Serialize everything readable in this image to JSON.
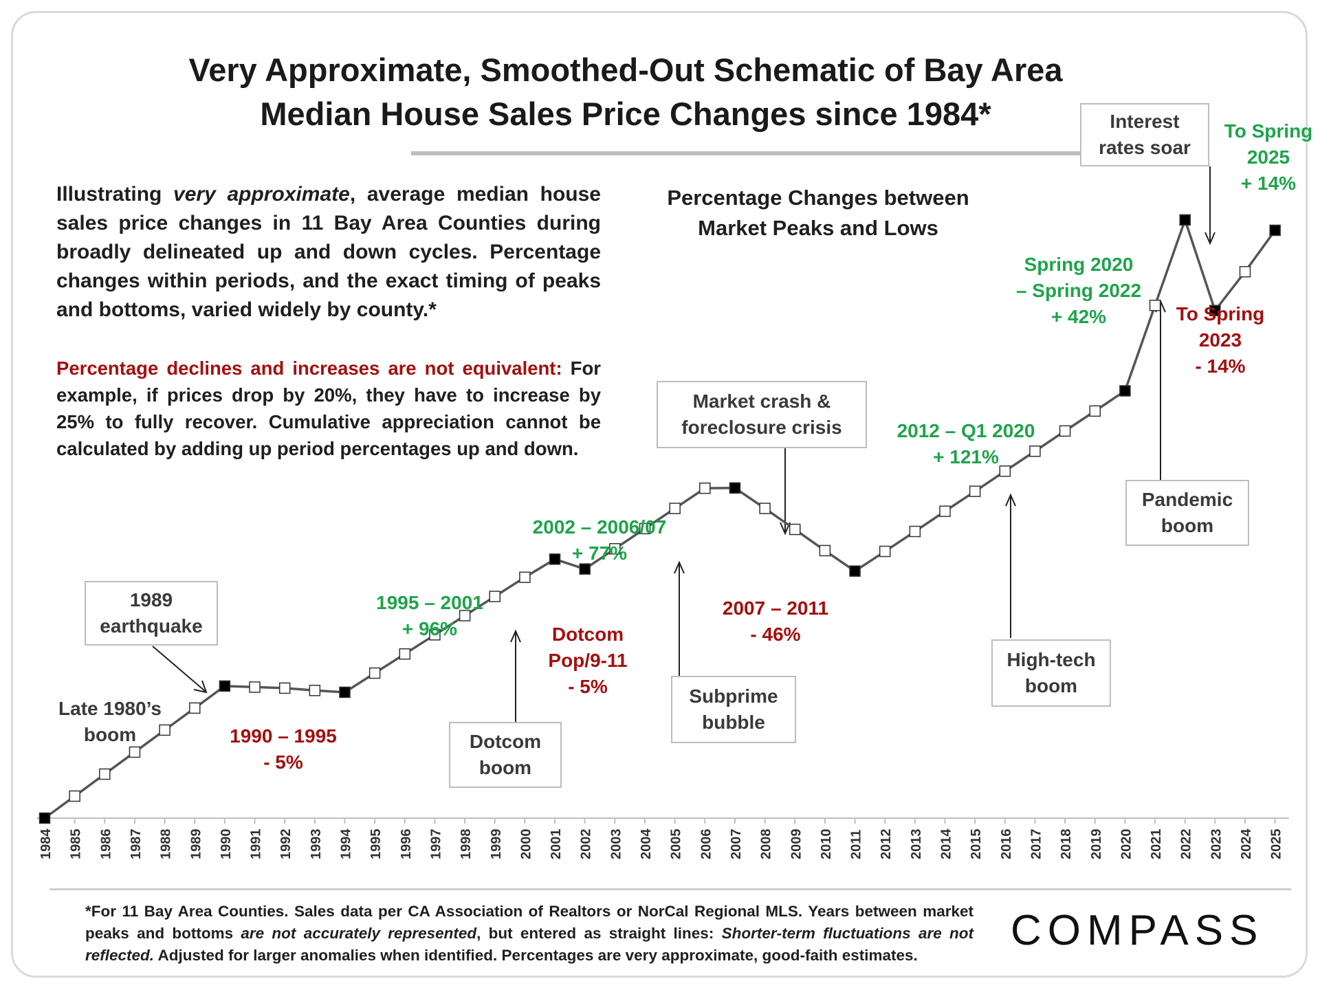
{
  "header": {
    "title_line1": "Very Approximate, Smoothed-Out Schematic of Bay Area",
    "title_line2": "Median House Sales Price Changes since 1984*"
  },
  "intro": {
    "p1_a": "Illustrating ",
    "p1_b": "very approximate",
    "p1_c": ", average median house sales price changes in 11 Bay Area Counties during broadly delineated up and down cycles. Percentage changes within periods, and the exact timing of peaks and bottoms, varied widely by county.*",
    "p2_red": "Percentage declines and increases are not equivalent:",
    "p2_rest": " For example, if prices drop by 20%, they have to increase by 25% to fully recover. Cumulative appreciation cannot be calculated by adding up period percentages up and down."
  },
  "subtitle_line1": "Percentage Changes between",
  "subtitle_line2": "Market Peaks and Lows",
  "events": {
    "earthquake": [
      "1989",
      "earthquake"
    ],
    "late80s": [
      "Late 1980’s",
      "boom"
    ],
    "dotcom_boom": [
      "Dotcom",
      "boom"
    ],
    "subprime": [
      "Subprime",
      "bubble"
    ],
    "crash": [
      "Market crash &",
      "foreclosure crisis"
    ],
    "hightech": [
      "High-tech",
      "boom"
    ],
    "pandemic": [
      "Pandemic",
      "boom"
    ],
    "rates": [
      "Interest",
      "rates soar"
    ]
  },
  "changes": {
    "c1990": [
      "1990 – 1995",
      "- 5%"
    ],
    "c1995": [
      "1995 – 2001",
      "+ 96%"
    ],
    "c2001": [
      "Dotcom",
      "Pop/9-11",
      "- 5%"
    ],
    "c2002": [
      "2002 – 2006/07",
      "+ 77%"
    ],
    "c2007": [
      "2007 – 2011",
      "- 46%"
    ],
    "c2012": [
      "2012 –  Q1 2020",
      "+ 121%"
    ],
    "c2020": [
      "Spring 2020",
      "– Spring 2022",
      "+ 42%"
    ],
    "c2022": [
      "To Spring",
      "2023",
      "- 14%"
    ],
    "c2023": [
      "To Spring",
      "2025",
      "+ 14%"
    ]
  },
  "footnote": {
    "a": "*For 11 Bay Area Counties. Sales data per CA Association of Realtors or NorCal Regional MLS. Years between market peaks and bottoms ",
    "b": "are not accurately represented",
    "c": ", but entered as straight lines: ",
    "d": "Shorter-term fluctuations are not reflected.",
    "e": " Adjusted for larger anomalies when identified. Percentages are very approximate, good-faith estimates."
  },
  "logo": "COMPASS",
  "colors": {
    "increase": "#1ea44a",
    "decrease": "#a50f0f",
    "line": "#555555",
    "peak_marker": "#000000",
    "mid_marker": "#ffffff"
  },
  "chart_data": {
    "type": "line",
    "title": "Very Approximate, Smoothed-Out Schematic of Bay Area Median House Sales Price Changes since 1984*",
    "xlabel": "",
    "ylabel": "",
    "y_axis_shown": false,
    "x": [
      "1984",
      "1985",
      "1986",
      "1987",
      "1988",
      "1989",
      "1990",
      "1991",
      "1992",
      "1993",
      "1994",
      "1995",
      "1996",
      "1997",
      "1998",
      "1999",
      "2000",
      "2001",
      "2002",
      "2003",
      "2004",
      "2005",
      "2006",
      "2007",
      "2008",
      "2009",
      "2010",
      "2011",
      "2012",
      "2013",
      "2014",
      "2015",
      "2016",
      "2017",
      "2018",
      "2019",
      "2020",
      "2021",
      "2022",
      "2023",
      "2024",
      "2025"
    ],
    "series": [
      {
        "values": [
          0,
          8.5,
          17,
          25.5,
          34,
          42.5,
          51,
          50.6,
          50.2,
          49.3,
          48.6,
          56,
          63.4,
          70.8,
          78.2,
          85.6,
          93,
          100,
          96.2,
          104,
          111.8,
          119.6,
          127.4,
          127.5,
          119.6,
          111.5,
          103.3,
          95.4,
          103,
          110.7,
          118.5,
          126.2,
          134,
          141.7,
          149.5,
          157.2,
          165,
          198,
          231,
          196,
          211,
          227
        ],
        "markers": [
          "peak",
          "mid",
          "mid",
          "mid",
          "mid",
          "mid",
          "peak",
          "mid",
          "mid",
          "mid",
          "peak",
          "mid",
          "mid",
          "mid",
          "mid",
          "mid",
          "mid",
          "peak",
          "peak",
          "mid",
          "mid",
          "mid",
          "mid",
          "peak",
          "mid",
          "mid",
          "mid",
          "peak",
          "mid",
          "mid",
          "mid",
          "mid",
          "mid",
          "mid",
          "mid",
          "mid",
          "peak",
          "mid",
          "peak",
          "peak",
          "mid",
          "peak"
        ]
      }
    ],
    "ylim": [
      0,
      240
    ],
    "grid": false
  }
}
